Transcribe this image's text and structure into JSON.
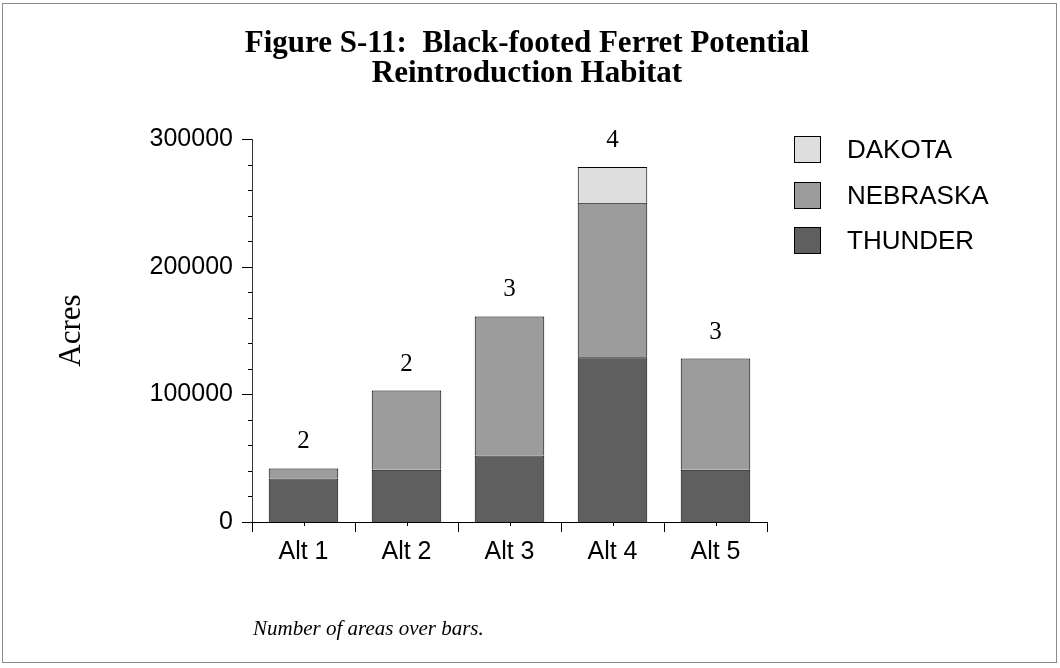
{
  "chart_data": {
    "type": "bar",
    "title": "Figure S-11:  Black-footed Ferret Potential Reintroduction Habitat",
    "ylabel": "Acres",
    "categories": [
      "Alt 1",
      "Alt 2",
      "Alt 3",
      "Alt 4",
      "Alt 5"
    ],
    "series": [
      {
        "name": "THUNDER",
        "color": "#5f5f5f",
        "values": [
          34000,
          41000,
          52000,
          129000,
          41000
        ]
      },
      {
        "name": "NEBRASKA",
        "color": "#9c9c9c",
        "values": [
          8000,
          62000,
          109000,
          121000,
          87000
        ]
      },
      {
        "name": "DAKOTA",
        "color": "#dedede",
        "values": [
          null,
          null,
          null,
          28000,
          null
        ]
      }
    ],
    "stacked": true,
    "ylim": [
      0,
      300000
    ],
    "yticks": [
      0,
      {
        "value": 20000,
        "label": null
      },
      {
        "value": 40000,
        "label": null
      },
      {
        "value": 60000,
        "label": null
      },
      {
        "value": 80000,
        "label": null
      },
      100000,
      {
        "value": 120000,
        "label": null
      },
      {
        "value": 140000,
        "label": null
      },
      {
        "value": 160000,
        "label": null
      },
      {
        "value": 180000,
        "label": null
      },
      200000,
      {
        "value": 220000,
        "label": null
      },
      {
        "value": 240000,
        "label": null
      },
      {
        "value": 260000,
        "label": null
      },
      {
        "value": 280000,
        "label": null
      },
      300000
    ],
    "legend": "top right",
    "annotations": [
      {
        "text": "2",
        "x": "Alt 1",
        "y": 42000
      },
      {
        "text": "2",
        "x": "Alt 2",
        "y": 103000
      },
      {
        "text": "3",
        "x": "Alt 3",
        "y": 161000
      },
      {
        "text": "4",
        "x": "Alt 4",
        "y": 278000
      },
      {
        "text": "3",
        "x": "Alt 5",
        "y": 128000
      },
      "Number of areas over bars."
    ]
  }
}
